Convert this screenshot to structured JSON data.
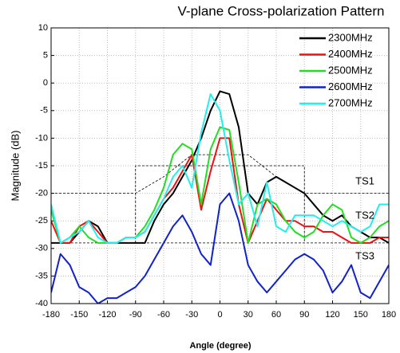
{
  "chart_data": {
    "type": "line",
    "title": "V-plane Cross-polarization Pattern",
    "xlabel": "Angle (degree)",
    "ylabel": "Magnitude (dB)",
    "x": [
      -180,
      -170,
      -160,
      -150,
      -140,
      -130,
      -120,
      -110,
      -100,
      -90,
      -80,
      -70,
      -60,
      -50,
      -40,
      -30,
      -20,
      -10,
      0,
      10,
      20,
      30,
      40,
      50,
      60,
      70,
      80,
      90,
      100,
      110,
      120,
      130,
      140,
      150,
      160,
      170,
      180
    ],
    "series": [
      {
        "name": "2300MHz",
        "color": "#000000",
        "values": [
          -29,
          -29,
          -29,
          -27,
          -25,
          -26,
          -29,
          -29,
          -29,
          -29,
          -29,
          -25,
          -22,
          -20,
          -17,
          -14,
          -10,
          -5,
          -1.5,
          -2,
          -8,
          -20,
          -22,
          -18,
          -17,
          -18,
          -19,
          -20,
          -22,
          -24,
          -25,
          -24,
          -26,
          -27,
          -28,
          -28,
          -29
        ]
      },
      {
        "name": "2400MHz",
        "color": "#ee1111",
        "values": [
          -25,
          -29,
          -29,
          -26,
          -25,
          -27,
          -29,
          -29,
          -28,
          -28,
          -27,
          -24,
          -21,
          -19,
          -16,
          -13,
          -23,
          -16,
          -10,
          -10,
          -22,
          -29,
          -25,
          -21,
          -23,
          -25,
          -25,
          -26,
          -26,
          -27,
          -27,
          -28,
          -29,
          -29,
          -29,
          -28,
          -28
        ]
      },
      {
        "name": "2500MHz",
        "color": "#22dd22",
        "values": [
          -23,
          -29,
          -28,
          -26,
          -28,
          -29,
          -29,
          -29,
          -28,
          -28,
          -26,
          -23,
          -19,
          -13,
          -11,
          -12,
          -22,
          -12,
          -8,
          -8.5,
          -18,
          -29,
          -22,
          -21,
          -22,
          -25,
          -27,
          -28,
          -27,
          -24,
          -22,
          -23,
          -28,
          -29,
          -28,
          -26,
          -25
        ]
      },
      {
        "name": "2600MHz",
        "color": "#1122cc",
        "values": [
          -38,
          -31,
          -33,
          -37,
          -38,
          -40,
          -39,
          -39,
          -38,
          -37,
          -35,
          -32,
          -29,
          -26,
          -24,
          -27,
          -31,
          -33,
          -22,
          -20,
          -25,
          -33,
          -36,
          -38,
          -36,
          -34,
          -32,
          -31,
          -32,
          -34,
          -38,
          -36,
          -33,
          -38,
          -39,
          -36,
          -33
        ]
      },
      {
        "name": "2700MHz",
        "color": "#22eeee",
        "values": [
          -22,
          -29,
          -28,
          -27,
          -25,
          -28,
          -29,
          -29,
          -28,
          -28,
          -27,
          -24,
          -21,
          -17,
          -15,
          -19,
          -9,
          -2,
          -5,
          -14,
          -22,
          -20,
          -26,
          -18,
          -26,
          -27,
          -24,
          -24,
          -24,
          -25,
          -26,
          -25,
          -26,
          -27,
          -26,
          -22,
          -22
        ]
      }
    ],
    "masks": [
      {
        "name": "TS1",
        "x": [
          -180,
          -90,
          -60,
          -30,
          30,
          60,
          90,
          180
        ],
        "values": [
          -20,
          -20,
          -17,
          -13,
          -13,
          -17,
          -20,
          -20
        ]
      },
      {
        "name": "TS2",
        "x": [
          -90,
          -90,
          90,
          90
        ],
        "values": [
          -29,
          -15,
          -15,
          -29
        ]
      },
      {
        "name": "TS3",
        "x": [
          -180,
          180
        ],
        "values": [
          -29,
          -29
        ]
      }
    ],
    "xlim": [
      -180,
      180
    ],
    "xticks": [
      -180,
      -150,
      -120,
      -90,
      -60,
      -30,
      0,
      30,
      60,
      90,
      120,
      150,
      180
    ],
    "ylim": [
      -40,
      10
    ],
    "yticks": [
      10,
      5,
      0,
      -5,
      -10,
      -15,
      -20,
      -25,
      -30,
      -35,
      -40
    ],
    "grid": true,
    "legend": "upper right"
  }
}
